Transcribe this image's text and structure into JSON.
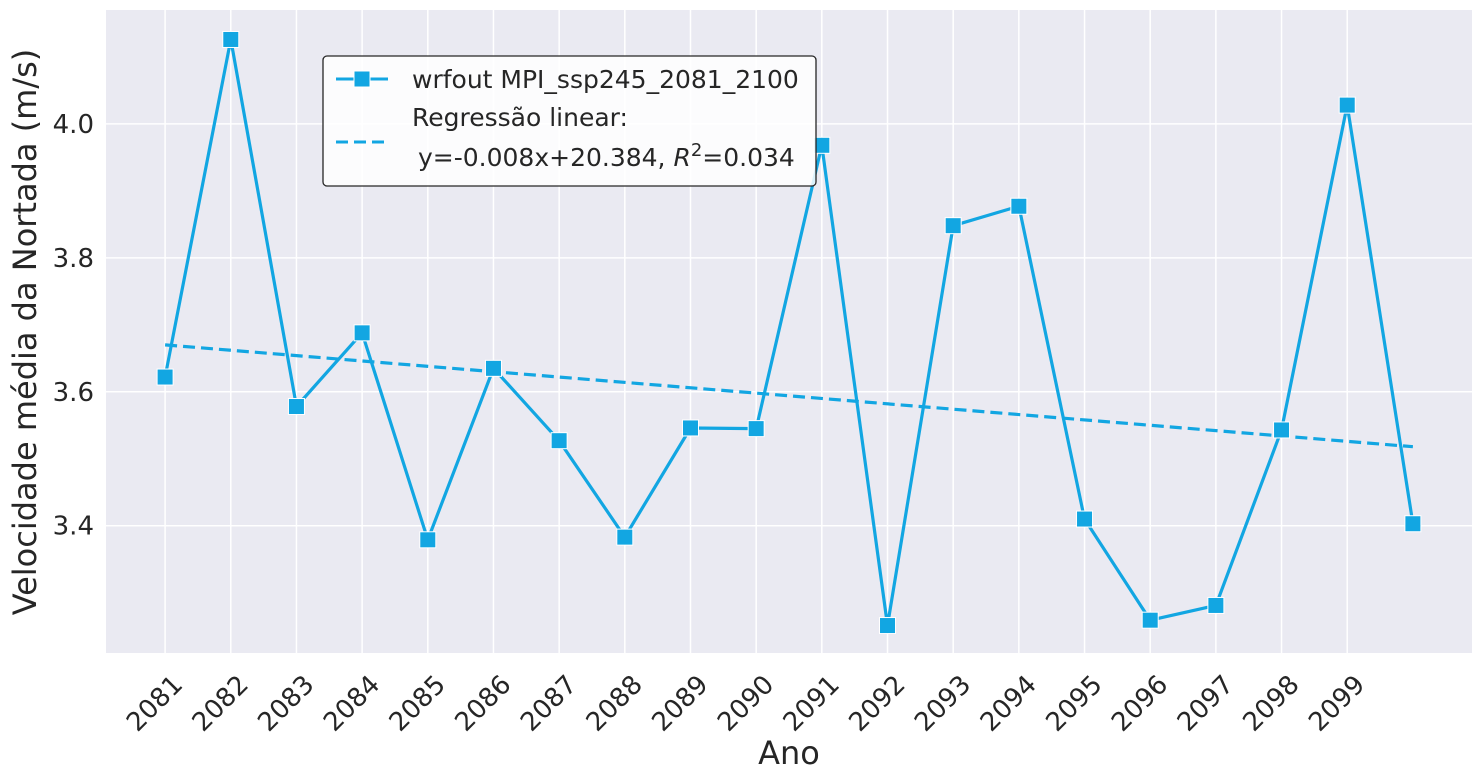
{
  "chart_data": {
    "type": "line",
    "xlabel": "Ano",
    "ylabel": "Velocidade média da Nortada (m/s)",
    "x": [
      2081,
      2082,
      2083,
      2084,
      2085,
      2086,
      2087,
      2088,
      2089,
      2090,
      2091,
      2092,
      2093,
      2094,
      2095,
      2096,
      2097,
      2098,
      2099,
      2100
    ],
    "x_tick_labels": [
      "2081",
      "2082",
      "2083",
      "2084",
      "2085",
      "2086",
      "2087",
      "2088",
      "2089",
      "2090",
      "2091",
      "2092",
      "2093",
      "2094",
      "2095",
      "2096",
      "2097",
      "2098",
      "2099"
    ],
    "series": [
      {
        "name": "wrfout MPI_ssp245_2081_2100",
        "values": [
          3.622,
          4.126,
          3.578,
          3.688,
          3.379,
          3.635,
          3.527,
          3.383,
          3.546,
          3.545,
          3.968,
          3.251,
          3.848,
          3.877,
          3.41,
          3.259,
          3.281,
          3.543,
          4.028,
          3.403
        ],
        "color": "#12a6e2",
        "marker": "square"
      }
    ],
    "regression": {
      "label_line1": "Regressão linear:",
      "label_line2": "y=-0.008x+20.384, ",
      "r2_symbol": "R",
      "r2_sup": "2",
      "r2_value": "=0.034",
      "start": [
        2081,
        3.67
      ],
      "end": [
        2100,
        3.518
      ],
      "color": "#12a6e2",
      "style": "dashed"
    },
    "ylim": [
      3.21,
      4.17
    ],
    "y_ticks": [
      3.4,
      3.6,
      3.8,
      4.0
    ],
    "y_tick_labels": [
      "3.4",
      "3.6",
      "3.8",
      "4.0"
    ],
    "xlim": [
      2080.1,
      2100.9
    ],
    "grid": true,
    "legend_position": "top-left",
    "colors": {
      "background": "#eaeaf2",
      "grid": "#ffffff",
      "series": "#12a6e2"
    }
  }
}
